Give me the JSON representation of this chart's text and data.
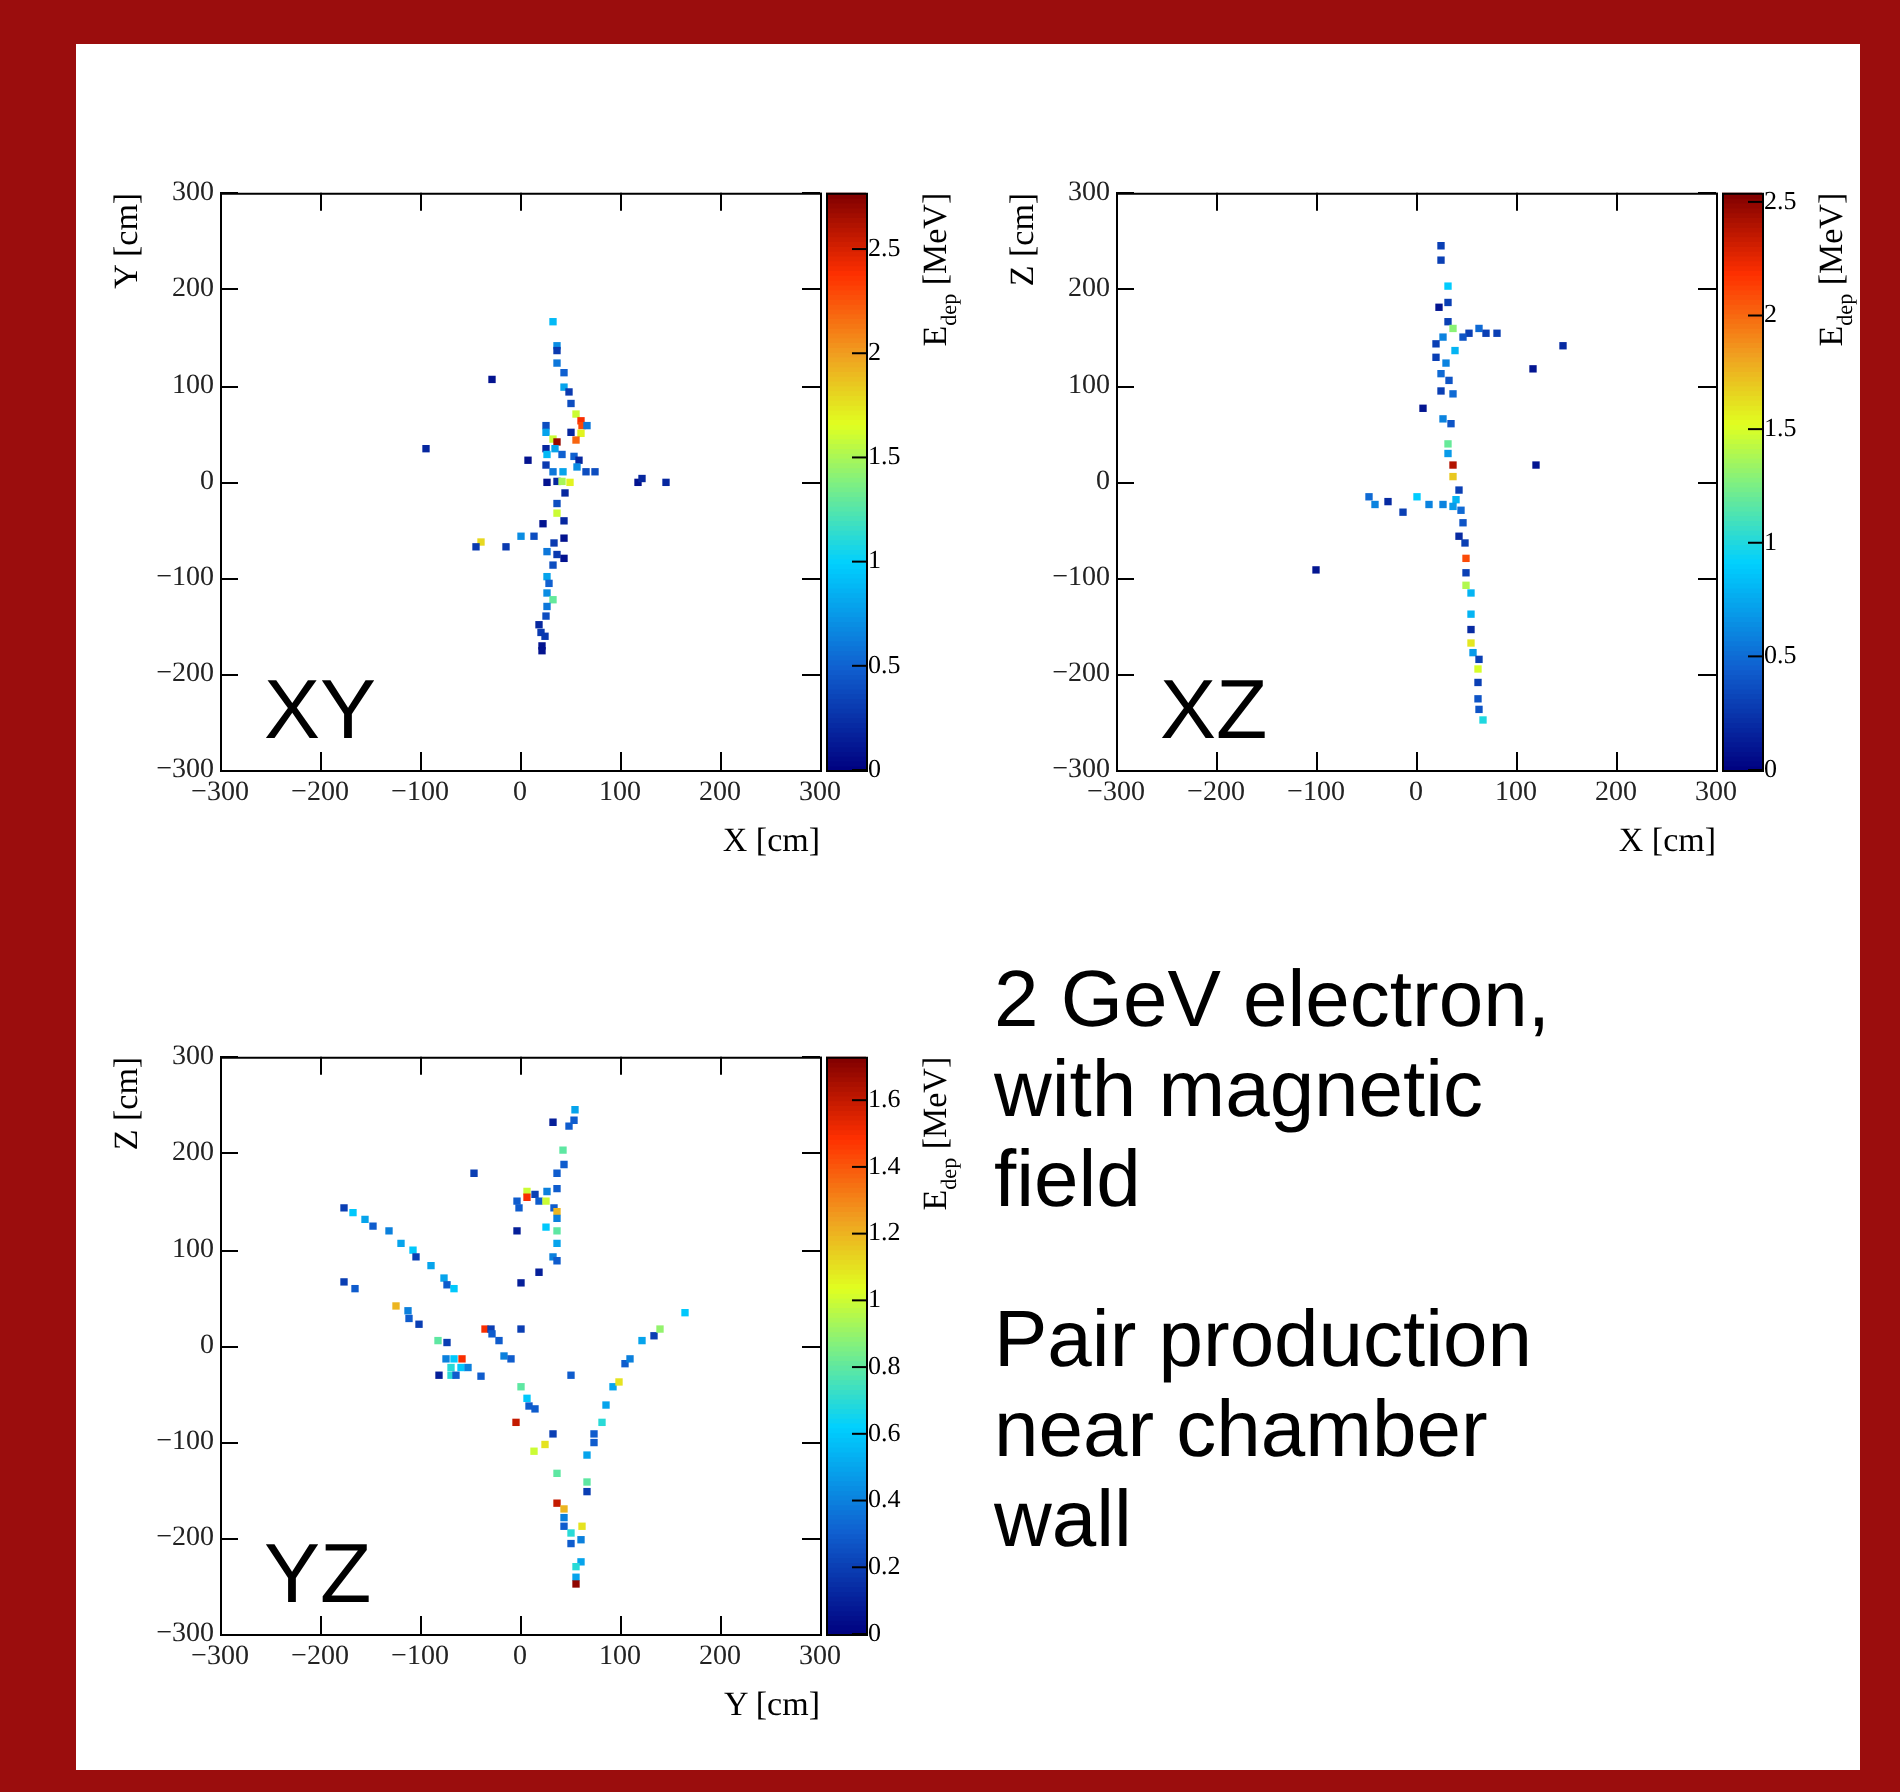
{
  "chart_data": [
    {
      "type": "scatter",
      "xlabel": "X [cm]",
      "ylabel": "Y [cm]",
      "clabel": "E$_{dep}$ [MeV]",
      "marker": "square",
      "annotations": [
        "XY"
      ],
      "xlim": [
        -300,
        300
      ],
      "ylim": [
        -300,
        300
      ],
      "xticks": [
        -300,
        -200,
        -100,
        0,
        100,
        200,
        300
      ],
      "yticks": [
        -300,
        -200,
        -100,
        0,
        100,
        200,
        300
      ],
      "clim": [
        0,
        2.77
      ],
      "cticks": [
        0,
        0.5,
        1,
        1.5,
        2,
        2.5
      ],
      "x": [
        33,
        37,
        37,
        37,
        44,
        44,
        49,
        51,
        56,
        61,
        62,
        67,
        61,
        56,
        51,
        -28,
        -94,
        26,
        26,
        33,
        37,
        26,
        35,
        27,
        42,
        54,
        59,
        8,
        26,
        33,
        43,
        57,
        75,
        66,
        27,
        37,
        42,
        50,
        45,
        118,
        122,
        146,
        37,
        37,
        44,
        23,
        1,
        14,
        34,
        44,
        -39,
        -44,
        -14,
        27,
        37,
        44,
        33,
        27,
        29,
        27,
        33,
        27,
        26,
        19,
        21,
        25,
        22,
        22
      ],
      "values": [
        166,
        141,
        136,
        123,
        113,
        98,
        93,
        81,
        70,
        63,
        58,
        58,
        50,
        43,
        51,
        106,
        34,
        58,
        51,
        44,
        41,
        34,
        34,
        28,
        28,
        26,
        22,
        22,
        17,
        10,
        10,
        15,
        10,
        10,
        -1,
        0,
        0,
        -1,
        -12,
        -1,
        3,
        -1,
        -23,
        -33,
        -41,
        -44,
        -57,
        -57,
        -64,
        -59,
        -63,
        -68,
        -68,
        -73,
        -76,
        -80,
        -87,
        -99,
        -106,
        -116,
        -123,
        -130,
        -140,
        -149,
        -157,
        -161,
        -171,
        -176
      ],
      "cvalues": [
        0.9,
        0.7,
        0.3,
        0.6,
        0.5,
        0.8,
        0.3,
        0.4,
        1.6,
        2.4,
        2.3,
        0.6,
        1.7,
        2.2,
        0.2,
        0.1,
        0.2,
        0.4,
        0.8,
        1.6,
        2.7,
        0.2,
        0.8,
        0.9,
        0.5,
        0.5,
        0.2,
        0.1,
        0.3,
        0.6,
        0.8,
        0.7,
        0.4,
        0.4,
        0.1,
        0.2,
        1.5,
        1.7,
        0.2,
        0.1,
        0.2,
        0.2,
        0.4,
        1.6,
        0.2,
        0.1,
        0.7,
        0.4,
        0.3,
        0.1,
        1.8,
        0.3,
        0.3,
        0.6,
        0.3,
        0.1,
        0.4,
        0.8,
        0.5,
        0.7,
        1.3,
        0.6,
        0.4,
        0.2,
        0.3,
        0.3,
        0.1,
        0.1
      ]
    },
    {
      "type": "scatter",
      "xlabel": "X [cm]",
      "ylabel": "Z [cm]",
      "clabel": "E$_{dep}$ [MeV]",
      "marker": "square",
      "annotations": [
        "XZ"
      ],
      "xlim": [
        -300,
        300
      ],
      "ylim": [
        -300,
        300
      ],
      "xticks": [
        -300,
        -200,
        -100,
        0,
        100,
        200,
        300
      ],
      "yticks": [
        -300,
        -200,
        -100,
        0,
        100,
        200,
        300
      ],
      "clim": [
        0,
        2.54
      ],
      "cticks": [
        0,
        0.5,
        1,
        1.5,
        2,
        2.5
      ],
      "x": [
        25,
        25,
        32,
        23,
        32,
        32,
        37,
        53,
        63,
        70,
        81,
        47,
        27,
        20,
        39,
        20,
        30,
        25,
        33,
        25,
        37,
        7,
        27,
        35,
        32,
        32,
        37,
        37,
        120,
        117,
        147,
        43,
        40,
        -47,
        -41,
        -28,
        -13,
        1,
        13,
        27,
        37,
        45,
        47,
        43,
        49,
        50,
        50,
        50,
        55,
        55,
        55,
        55,
        57,
        63,
        62,
        62,
        62,
        63,
        67,
        -100
      ],
      "values": [
        245,
        230,
        203,
        181,
        186,
        166,
        159,
        154,
        159,
        154,
        154,
        150,
        150,
        143,
        136,
        129,
        123,
        112,
        105,
        94,
        91,
        76,
        65,
        60,
        39,
        29,
        17,
        5,
        17,
        117,
        141,
        -9,
        -19,
        -16,
        -24,
        -21,
        -32,
        -16,
        -24,
        -24,
        -26,
        -30,
        -43,
        -57,
        -64,
        -80,
        -95,
        -108,
        -116,
        -138,
        -154,
        -168,
        -178,
        -185,
        -195,
        -209,
        -226,
        -237,
        -248,
        -92
      ],
      "cvalues": [
        0.3,
        0.3,
        0.9,
        0.1,
        0.3,
        0.3,
        1.3,
        0.3,
        0.5,
        0.3,
        0.3,
        0.4,
        0.6,
        0.3,
        0.8,
        0.3,
        0.6,
        0.5,
        0.4,
        0.3,
        0.5,
        0.1,
        0.6,
        0.4,
        1.2,
        0.7,
        2.4,
        1.7,
        0.1,
        0.1,
        0.2,
        0.3,
        0.8,
        0.5,
        0.6,
        0.2,
        0.3,
        0.9,
        0.6,
        0.6,
        0.7,
        0.5,
        0.4,
        0.2,
        0.3,
        2.1,
        0.3,
        1.4,
        0.8,
        0.8,
        0.2,
        1.6,
        0.7,
        0.3,
        1.5,
        0.3,
        0.4,
        0.4,
        1.0,
        0.1
      ]
    },
    {
      "type": "scatter",
      "xlabel": "Y [cm]",
      "ylabel": "Z [cm]",
      "clabel": "E$_{dep}$ [MeV]",
      "marker": "square",
      "annotations": [
        "YZ"
      ],
      "xlim": [
        -300,
        300
      ],
      "ylim": [
        -300,
        300
      ],
      "xticks": [
        -300,
        -200,
        -100,
        0,
        100,
        200,
        300
      ],
      "yticks": [
        -300,
        -200,
        -100,
        0,
        100,
        200,
        300
      ],
      "clim": [
        0,
        1.73
      ],
      "cticks": [
        0,
        0.2,
        0.4,
        0.6,
        0.8,
        1,
        1.2,
        1.4,
        1.6
      ],
      "x": [
        55,
        54,
        33,
        49,
        43,
        44,
        37,
        -46,
        7,
        7,
        15,
        27,
        37,
        -3,
        19,
        26,
        34,
        37,
        -1,
        37,
        26,
        37,
        -3,
        37,
        33,
        37,
        19,
        1,
        -176,
        -167,
        -155,
        -147,
        -131,
        -119,
        -107,
        -104,
        -89,
        -76,
        -73,
        -66,
        -176,
        -165,
        -124,
        -112,
        -111,
        -101,
        -82,
        -73,
        -35,
        -29,
        -28,
        -21,
        1,
        -16,
        -9,
        -74,
        -66,
        -58,
        -69,
        -59,
        -52,
        -81,
        -69,
        -64,
        -39,
        51,
        1,
        7,
        9,
        15,
        -4,
        33,
        25,
        14,
        37,
        37,
        44,
        44,
        44,
        62,
        51,
        51,
        61,
        61,
        56,
        56,
        56,
        67,
        67,
        67,
        74,
        74,
        82,
        86,
        93,
        99,
        105,
        110,
        122,
        134,
        140,
        165
      ],
      "values": [
        245,
        234,
        232,
        228,
        203,
        188,
        179,
        179,
        160,
        154,
        157,
        160,
        163,
        150,
        150,
        150,
        143,
        139,
        143,
        132,
        123,
        119,
        119,
        106,
        92,
        88,
        76,
        65,
        143,
        138,
        131,
        124,
        119,
        106,
        99,
        92,
        83,
        70,
        63,
        59,
        66,
        59,
        41,
        36,
        28,
        22,
        5,
        3,
        17,
        17,
        12,
        5,
        17,
        -11,
        -14,
        -14,
        -14,
        -14,
        -23,
        -23,
        -23,
        -31,
        -31,
        -31,
        -32,
        -31,
        -43,
        -55,
        -63,
        -66,
        -80,
        -92,
        -103,
        -110,
        -133,
        -164,
        -170,
        -179,
        -188,
        -188,
        -195,
        -206,
        -202,
        -225,
        -230,
        -241,
        -248,
        -142,
        -152,
        -114,
        -101,
        -92,
        -80,
        -62,
        -43,
        -38,
        -19,
        -14,
        5,
        10,
        17,
        34
      ],
      "cvalues": [
        0.5,
        0.3,
        0.1,
        0.3,
        0.8,
        0.3,
        0.3,
        0.2,
        1.0,
        1.5,
        0.2,
        0.4,
        0.3,
        0.3,
        0.3,
        1.0,
        0.3,
        1.2,
        0.3,
        0.4,
        0.6,
        0.8,
        0.1,
        0.5,
        0.4,
        0.3,
        0.1,
        0.1,
        0.2,
        0.6,
        0.5,
        0.3,
        0.4,
        0.5,
        0.6,
        0.2,
        0.5,
        0.5,
        0.3,
        0.6,
        0.2,
        0.3,
        1.2,
        0.4,
        0.3,
        0.2,
        0.8,
        0.2,
        1.5,
        0.2,
        0.3,
        0.3,
        0.2,
        0.4,
        0.3,
        0.4,
        0.6,
        1.5,
        0.7,
        0.6,
        0.4,
        0.1,
        0.7,
        0.3,
        0.3,
        0.3,
        0.8,
        0.6,
        0.3,
        0.3,
        1.6,
        0.2,
        1.1,
        1.0,
        0.8,
        1.6,
        1.2,
        0.4,
        0.3,
        1.1,
        0.7,
        0.3,
        0.4,
        0.5,
        0.7,
        0.5,
        1.7,
        0.8,
        0.2,
        0.5,
        0.3,
        0.3,
        0.7,
        0.5,
        0.5,
        1.1,
        0.3,
        0.4,
        0.5,
        0.2,
        0.9,
        0.6
      ]
    },
    {
      "type": "other",
      "annotations": [
        "2 GeV electron, with magnetic field",
        "Pair production near chamber wall"
      ]
    }
  ]
}
